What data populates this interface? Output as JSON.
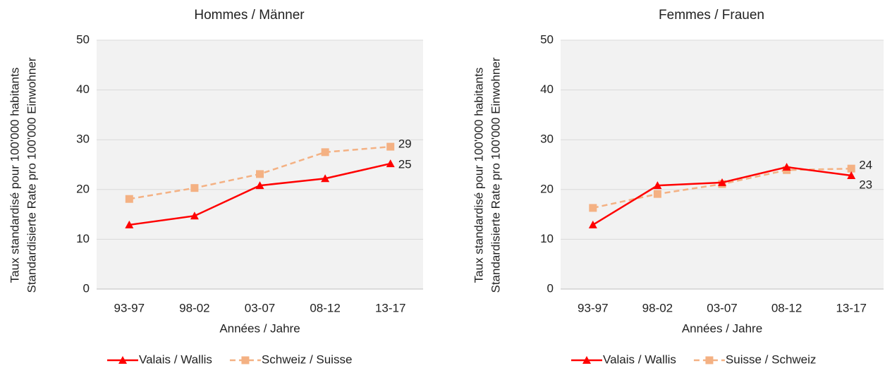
{
  "chart_data": [
    {
      "type": "line",
      "title": "Hommes / Männer",
      "x_label": "Années / Jahre",
      "y_label": [
        "Taux standardisé pour 100'000 habitants",
        "Standardisierte Rate pro 100'000 Einwohner"
      ],
      "categories": [
        "93-97",
        "98-02",
        "03-07",
        "08-12",
        "13-17"
      ],
      "series": [
        {
          "name": "Valais / Wallis",
          "color": "#ff0000",
          "marker": "triangle",
          "dashed": false,
          "values": [
            12.9,
            14.7,
            20.8,
            22.2,
            25.2
          ],
          "value_labels": [
            null,
            null,
            null,
            null,
            "25"
          ]
        },
        {
          "name": "Schweiz / Suisse",
          "color": "#f4b183",
          "marker": "square",
          "dashed": true,
          "values": [
            18.1,
            20.3,
            23.1,
            27.5,
            28.6
          ],
          "value_labels": [
            null,
            null,
            null,
            null,
            "29"
          ]
        }
      ],
      "ylim": [
        0,
        50
      ],
      "yticks": [
        0,
        10,
        20,
        30,
        40,
        50
      ],
      "grid": true,
      "legend": "bottom"
    },
    {
      "type": "line",
      "title": "Femmes / Frauen",
      "x_label": "Années / Jahre",
      "y_label": [
        "Taux standardisé pour 100'000 habitants",
        "Standardisierte Rate pro 100'000 Einwohner"
      ],
      "categories": [
        "93-97",
        "98-02",
        "03-07",
        "08-12",
        "13-17"
      ],
      "series": [
        {
          "name": "Valais / Wallis",
          "color": "#ff0000",
          "marker": "triangle",
          "dashed": false,
          "values": [
            12.9,
            20.8,
            21.4,
            24.5,
            22.8
          ],
          "value_labels": [
            null,
            null,
            null,
            null,
            "23"
          ]
        },
        {
          "name": "Suisse / Schweiz",
          "color": "#f4b183",
          "marker": "square",
          "dashed": true,
          "values": [
            16.3,
            19.1,
            21.1,
            23.9,
            24.2
          ],
          "value_labels": [
            null,
            null,
            null,
            null,
            "24"
          ]
        }
      ],
      "ylim": [
        0,
        50
      ],
      "yticks": [
        0,
        10,
        20,
        30,
        40,
        50
      ],
      "grid": true,
      "legend": "bottom"
    }
  ]
}
